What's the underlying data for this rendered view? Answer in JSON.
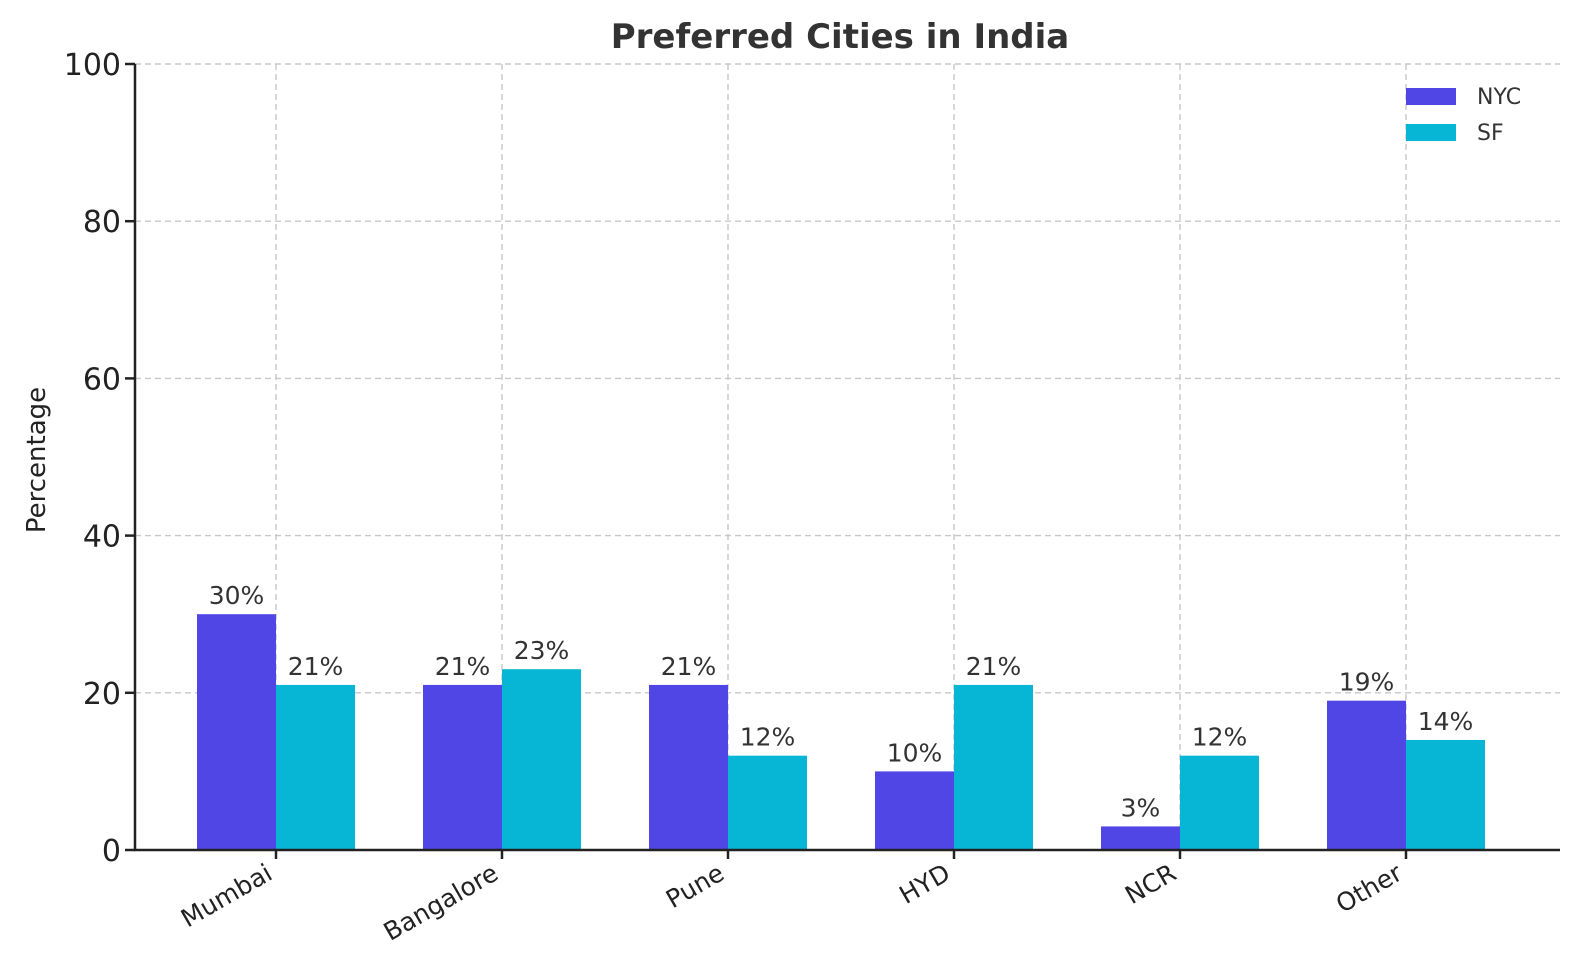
{
  "chart_data": {
    "type": "bar",
    "title": "Preferred Cities in India",
    "xlabel": "",
    "ylabel": "Percentage",
    "ylim": [
      0,
      100
    ],
    "yticks": [
      0,
      20,
      40,
      60,
      80,
      100
    ],
    "categories": [
      "Mumbai",
      "Bangalore",
      "Pune",
      "HYD",
      "NCR",
      "Other"
    ],
    "series": [
      {
        "name": "NYC",
        "color": "#4f46e5",
        "values": [
          30,
          21,
          21,
          10,
          3,
          19
        ],
        "labels": [
          "30%",
          "21%",
          "21%",
          "10%",
          "3%",
          "19%"
        ]
      },
      {
        "name": "SF",
        "color": "#06b6d4",
        "values": [
          21,
          23,
          12,
          21,
          12,
          14
        ],
        "labels": [
          "21%",
          "23%",
          "12%",
          "21%",
          "12%",
          "14%"
        ]
      }
    ],
    "grid": true,
    "legend_position": "top-right"
  }
}
